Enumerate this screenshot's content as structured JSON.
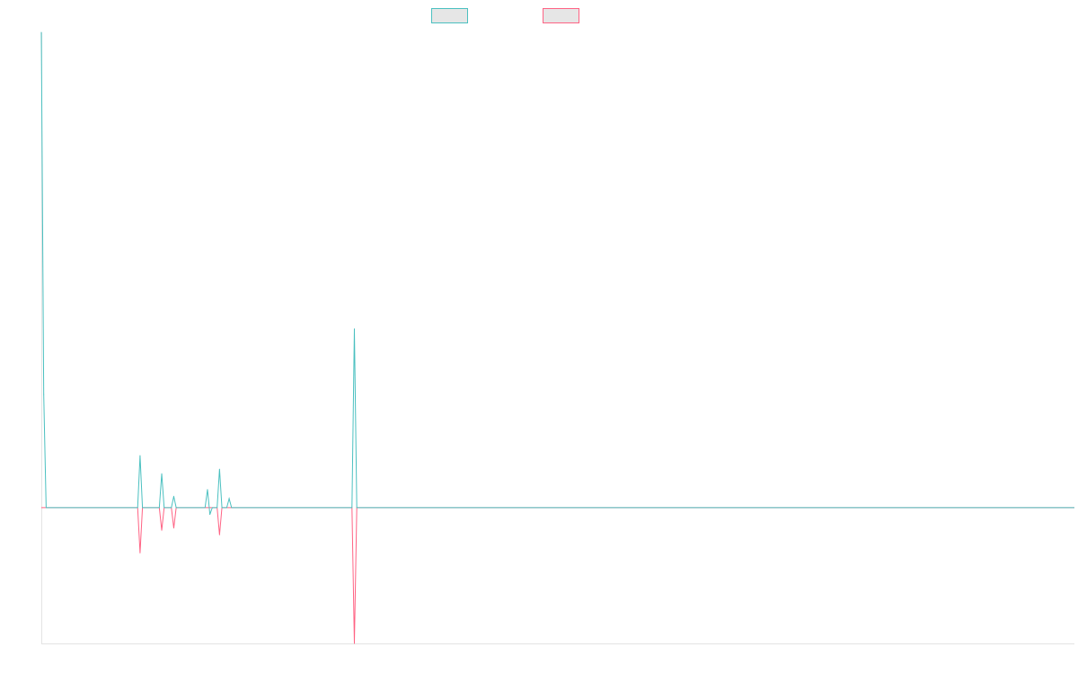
{
  "chart_data": {
    "type": "line",
    "title": "",
    "xlabel": "",
    "ylabel": "",
    "x": [
      0,
      1,
      2,
      3,
      4,
      5,
      6,
      7,
      8,
      9,
      10,
      11,
      12,
      13,
      14,
      15,
      16,
      17,
      18,
      19,
      20,
      21,
      22,
      23,
      24,
      25,
      26,
      27,
      28,
      29,
      30,
      31,
      32,
      33,
      34,
      35,
      36,
      37,
      38,
      39,
      40,
      41,
      42,
      43,
      44,
      45,
      46,
      47,
      48,
      49,
      50,
      51,
      52,
      53,
      54,
      55,
      56,
      57,
      58,
      59,
      60,
      61,
      62,
      63,
      64,
      65,
      66,
      67,
      68,
      69,
      70,
      71,
      72,
      73,
      74,
      75,
      76,
      77,
      78,
      79,
      80,
      81,
      82,
      83,
      84,
      85,
      86,
      87,
      88,
      89,
      90,
      91,
      92,
      93,
      94,
      95,
      96,
      97,
      98,
      99,
      100,
      101,
      102,
      103,
      104,
      105,
      106,
      107,
      108,
      109,
      110,
      111,
      112,
      113,
      114,
      115,
      116,
      117,
      118,
      119,
      120,
      121,
      122,
      123,
      124,
      125,
      126,
      127,
      128,
      129,
      130,
      131,
      132,
      133,
      134,
      135,
      136,
      137,
      138,
      139,
      140,
      141,
      142,
      143,
      144,
      145,
      146,
      147,
      148,
      149,
      150,
      151,
      152,
      153,
      154,
      155,
      156,
      157,
      158,
      159,
      160,
      161,
      162,
      163,
      164,
      165,
      166,
      167,
      168,
      169,
      170,
      171,
      172,
      173,
      174,
      175,
      176,
      177,
      178,
      179,
      180,
      181,
      182,
      183,
      184,
      185,
      186,
      187,
      188,
      189,
      190,
      191,
      192,
      193,
      194,
      195,
      196,
      197,
      198,
      199,
      200,
      201,
      202,
      203,
      204,
      205,
      206,
      207,
      208,
      209,
      210,
      211,
      212,
      213,
      214,
      215,
      216,
      217,
      218,
      219,
      220,
      221,
      222,
      223,
      224,
      225,
      226,
      227,
      228,
      229,
      230,
      231,
      232,
      233,
      234,
      235,
      236,
      237,
      238,
      239,
      240,
      241,
      242,
      243,
      244,
      245,
      246,
      247,
      248,
      249,
      250,
      251,
      252,
      253,
      254,
      255,
      256,
      257,
      258,
      259,
      260,
      261,
      262,
      263,
      264,
      265,
      266,
      267,
      268,
      269,
      270,
      271,
      272,
      273,
      274,
      275,
      276,
      277,
      278,
      279,
      280,
      281,
      282,
      283,
      284,
      285,
      286,
      287,
      288,
      289,
      290,
      291,
      292,
      293,
      294,
      295,
      296,
      297,
      298,
      299,
      300,
      301,
      302,
      303,
      304,
      305,
      306,
      307,
      308,
      309,
      310,
      311,
      312,
      313,
      314,
      315,
      316,
      317,
      318,
      319,
      320,
      321,
      322,
      323,
      324,
      325,
      326,
      327,
      328,
      329,
      330,
      331,
      332,
      333,
      334,
      335,
      336,
      337,
      338,
      339,
      340,
      341,
      342,
      343,
      344,
      345,
      346,
      347,
      348,
      349,
      350,
      351,
      352,
      353,
      354,
      355,
      356,
      357,
      358,
      359,
      360,
      361,
      362,
      363,
      364,
      365,
      366,
      367,
      368,
      369,
      370,
      371,
      372,
      373,
      374,
      375,
      376,
      377,
      378,
      379,
      380,
      381,
      382,
      383,
      384,
      385,
      386,
      387,
      388,
      389,
      390,
      391,
      392,
      393,
      394,
      395,
      396,
      397,
      398,
      399,
      400,
      401,
      402,
      403,
      404,
      405,
      406,
      407,
      408,
      409,
      410,
      411,
      412,
      413,
      414,
      415,
      416,
      417,
      418,
      419,
      420,
      421,
      422,
      423,
      424,
      425,
      426,
      427,
      428,
      429
    ],
    "ylim": [
      -30,
      105
    ],
    "grid": false,
    "legend_position": "top-center",
    "series": [
      {
        "color": "#4bc0c0",
        "sparse": true,
        "baseline": 0,
        "points": [
          [
            0,
            105
          ],
          [
            1,
            25
          ],
          [
            2,
            0
          ],
          [
            40,
            0
          ],
          [
            41,
            11.5
          ],
          [
            42,
            0
          ],
          [
            49,
            0
          ],
          [
            50,
            7.5
          ],
          [
            51,
            0
          ],
          [
            54,
            0
          ],
          [
            55,
            2.5
          ],
          [
            56,
            0
          ],
          [
            68,
            0
          ],
          [
            69,
            4
          ],
          [
            70,
            -1.5
          ],
          [
            71,
            0
          ],
          [
            73,
            0
          ],
          [
            74,
            8.5
          ],
          [
            75,
            0
          ],
          [
            77,
            0
          ],
          [
            78,
            2
          ],
          [
            79,
            0
          ],
          [
            129,
            0
          ],
          [
            130,
            39.5
          ],
          [
            131,
            0
          ],
          [
            429,
            0
          ]
        ]
      },
      {
        "color": "#ff6384",
        "sparse": true,
        "baseline": 0,
        "points": [
          [
            0,
            0
          ],
          [
            40,
            0
          ],
          [
            41,
            -10
          ],
          [
            42,
            0
          ],
          [
            49,
            0
          ],
          [
            50,
            -5
          ],
          [
            51,
            0
          ],
          [
            54,
            0
          ],
          [
            55,
            -4.5
          ],
          [
            56,
            0
          ],
          [
            68,
            0
          ],
          [
            69,
            0
          ],
          [
            70,
            0
          ],
          [
            71,
            0
          ],
          [
            73,
            0
          ],
          [
            74,
            -6
          ],
          [
            75,
            0
          ],
          [
            129,
            0
          ],
          [
            130,
            -30
          ],
          [
            131,
            0
          ],
          [
            429,
            0
          ]
        ]
      }
    ]
  },
  "legend": {
    "item_0": {
      "label": "",
      "border": "#4bc0c0",
      "fill": "#e6e6e6"
    },
    "item_1": {
      "label": "",
      "border": "#ff6384",
      "fill": "#e6e6e6"
    }
  }
}
